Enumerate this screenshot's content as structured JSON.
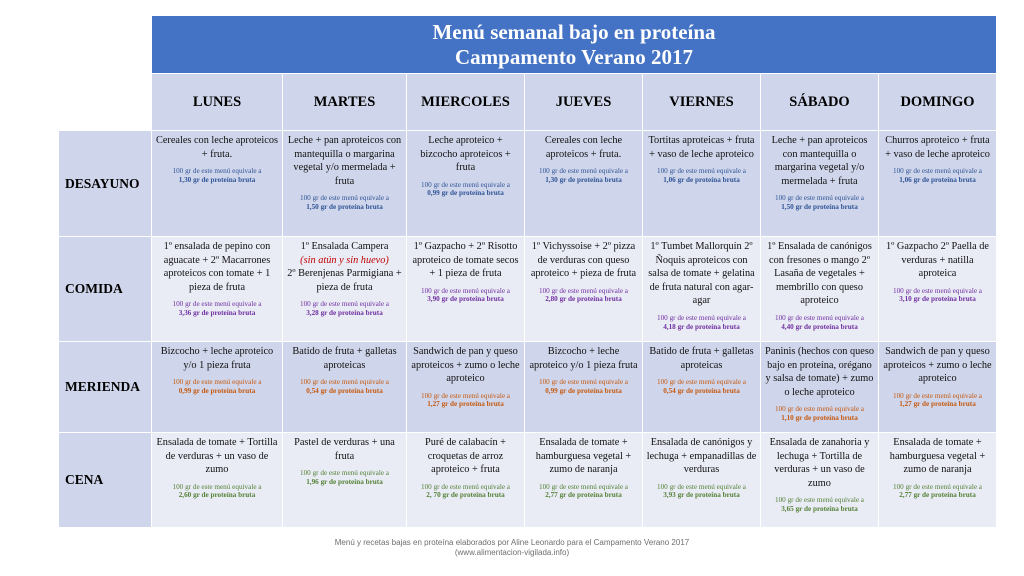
{
  "title": {
    "line1": "Menú semanal bajo en proteína",
    "line2": "Campamento Verano 2017"
  },
  "days": [
    "LUNES",
    "MARTES",
    "MIERCOLES",
    "JUEVES",
    "VIERNES",
    "SÁBADO",
    "DOMINGO"
  ],
  "meals": [
    {
      "name": "DESAYUNO",
      "eq_color": "blue",
      "cells": [
        {
          "food": "Cereales  con leche aproteicos + fruta.",
          "eq": "100 gr de este menú equivale a",
          "amount": "1,30 gr de proteína bruta"
        },
        {
          "food": "Leche + pan aproteicos con mantequilla o margarina vegetal  y/o mermelada + fruta",
          "eq": "100 gr de este menú equivale a",
          "amount": "1,50 gr de proteína bruta"
        },
        {
          "food": "Leche aproteico + bizcocho aproteicos + fruta",
          "eq": "100 gr de este menú equivale a",
          "amount": "0,99 gr de proteína bruta"
        },
        {
          "food": "Cereales  con leche aproteicos + fruta.",
          "eq": "100 gr de este menú equivale a",
          "amount": "1,30 gr de proteína bruta"
        },
        {
          "food": "Tortitas aproteicas + fruta +  vaso de leche aproteico",
          "eq": "100 gr de este menú equivale a",
          "amount": "1,06 gr de proteína bruta"
        },
        {
          "food": "Leche + pan aproteicos con mantequilla o margarina vegetal  y/o mermelada + fruta",
          "eq": "100 gr de este menú equivale a",
          "amount": "1,50 gr de proteína bruta"
        },
        {
          "food": "Churros  aproteico + fruta + vaso de leche aproteico",
          "eq": "100 gr de este menú equivale a",
          "amount": "1,06 gr de proteína bruta"
        }
      ]
    },
    {
      "name": "COMIDA",
      "eq_color": "purple",
      "cells": [
        {
          "food": "1º  ensalada de pepino con aguacate + 2º  Macarrones aproteicos con tomate  + 1 pieza de fruta",
          "eq": "100 gr de este menú equivale a",
          "amount": "3,36 gr de proteína bruta"
        },
        {
          "food": "1º Ensalada Campera",
          "highlight": "(sin atún y sin huevo)",
          "food2": "2º  Berenjenas Parmigiana + pieza de fruta",
          "eq": "100 gr de este menú equivale a",
          "amount": "3,28 gr de proteína bruta"
        },
        {
          "food": "1º Gazpacho + 2º Risotto aproteico de tomate secos + 1 pieza de fruta",
          "eq": "100 gr de este menú equivale a",
          "amount": "3,90 gr de proteína bruta"
        },
        {
          "food": "1º Vichyssoise  +  2º pizza de verduras con queso aproteico + pieza de fruta",
          "eq": "100 gr de este menú equivale a",
          "amount": "2,80 gr de proteína bruta"
        },
        {
          "food": "1º Tumbet Mallorquín 2º Ñoquis aproteicos con salsa de tomate + gelatina de fruta natural con agar-agar",
          "eq": "100 gr de este menú equivale a",
          "amount": "4,18 gr de proteína bruta"
        },
        {
          "food": "1º Ensalada de canónigos con fresones o mango 2º Lasaña de vegetales + membrillo con queso aproteico",
          "eq": "100 gr de este menú equivale a",
          "amount": "4,40 gr de proteína bruta"
        },
        {
          "food": "1º Gazpacho 2º Paella de verduras + natilla aproteica",
          "eq": "100 gr de este menú equivale a",
          "amount": "3,10 gr de proteína bruta"
        }
      ]
    },
    {
      "name": "MERIENDA",
      "eq_color": "orange",
      "cells": [
        {
          "food": "Bizcocho + leche aproteico y/o 1 pieza fruta",
          "eq": "100 gr de este menú equivale a",
          "amount": "0,99 gr de proteína bruta"
        },
        {
          "food": "Batido de fruta + galletas aproteicas",
          "eq": "100 gr de este menú equivale a",
          "amount": "0,54 gr de proteína bruta"
        },
        {
          "food": "Sandwich de pan y queso aproteicos + zumo o leche aproteico",
          "eq": "100 gr de este menú equivale a",
          "amount": "1,27 gr de proteína bruta"
        },
        {
          "food": "Bizcocho + leche aproteico y/o 1 pieza fruta",
          "eq": "100 gr de este menú equivale a",
          "amount": "0,99 gr de proteína bruta"
        },
        {
          "food": "Batido de fruta + galletas aproteicas",
          "eq": "100 gr de este menú equivale a",
          "amount": "0,54 gr de proteína bruta"
        },
        {
          "food": "Paninis (hechos con queso bajo en proteína, orégano y salsa de tomate) + zumo o leche aproteico",
          "eq": "100 gr de este menú equivale a",
          "amount": "1,10 gr de proteína bruta"
        },
        {
          "food": "Sandwich de pan y queso aproteicos + zumo o leche aproteico",
          "eq": "100 gr de este menú equivale a",
          "amount": "1,27 gr de proteína bruta"
        }
      ]
    },
    {
      "name": "CENA",
      "eq_color": "green",
      "cells": [
        {
          "food": "Ensalada de tomate + Tortilla de verduras + un vaso de zumo",
          "eq": "100 gr de este menú equivale a",
          "amount": "2,60 gr de proteína bruta"
        },
        {
          "food": "Pastel de verduras + una fruta",
          "eq": "100 gr de este menú equivale a",
          "amount": "1,96 gr de proteína bruta"
        },
        {
          "food": "Puré de calabacín + croquetas de arroz aproteico + fruta",
          "eq": "100 gr de este menú equivale a",
          "amount": "2, 70 gr de proteína bruta"
        },
        {
          "food": "Ensalada de tomate + hamburguesa vegetal + zumo de naranja",
          "eq": "100 gr de este menú equivale a",
          "amount": "2,77 gr de proteína bruta"
        },
        {
          "food": "Ensalada de canónigos y lechuga + empanadillas de verduras",
          "eq": "100 gr de este menú equivale a",
          "amount": "3,93 gr de proteína bruta"
        },
        {
          "food": "Ensalada de zanahoria y lechuga + Tortilla de verduras + un vaso de zumo",
          "eq": "100 gr de este menú equivale a",
          "amount": "3,65 gr de proteína bruta"
        },
        {
          "food": "Ensalada de tomate + hamburguesa vegetal + zumo de naranja",
          "eq": "100 gr de este menú equivale a",
          "amount": "2,77 gr de proteína bruta"
        }
      ]
    }
  ],
  "footer": {
    "line1": "Menú y recetas bajas en proteína elaborados por Aline Leonardo para el Campamento Verano 2017",
    "line2": "(www.alimentacion-vigilada.info)"
  }
}
